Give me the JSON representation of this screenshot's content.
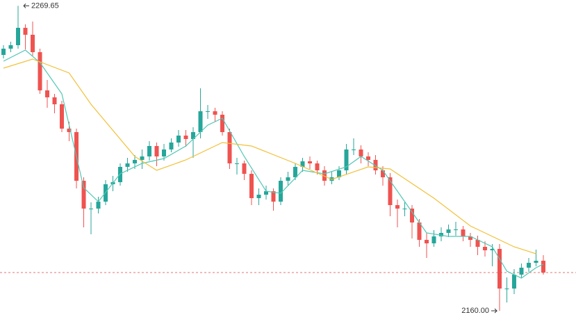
{
  "chart_data": {
    "type": "candlestick",
    "open": [
      2252,
      2254.25,
      2255.5,
      2261.75,
      2259.25,
      2253,
      2239.25,
      2236.75,
      2234.25,
      2225.5,
      2224.25,
      2206.75,
      2196.75,
      2196.75,
      2199.25,
      2205.5,
      2206.25,
      2211.75,
      2213,
      2214.25,
      2215.5,
      2219.25,
      2215.5,
      2218,
      2220.5,
      2223,
      2221.75,
      2224.25,
      2231.75,
      2231.75,
      2230.5,
      2224.25,
      2213,
      2213,
      2209.25,
      2200.5,
      2201.75,
      2203,
      2199.25,
      2206.75,
      2208,
      2211.75,
      2213.75,
      2213,
      2210.5,
      2206.75,
      2208,
      2210.5,
      2218,
      2218,
      2215.5,
      2214.25,
      2210.5,
      2208,
      2198,
      2196.75,
      2196.75,
      2191.75,
      2185.5,
      2184.25,
      2186.75,
      2188,
      2189.25,
      2189.25,
      2186.75,
      2185.5,
      2183,
      2181.75,
      2182.25,
      2168,
      2168,
      2173,
      2175.5,
      2177.25,
      2178
    ],
    "high": [
      2255.5,
      2256.75,
      2269.65,
      2263,
      2264,
      2254.25,
      2243,
      2238,
      2235.5,
      2228,
      2225.5,
      2208,
      2199,
      2201,
      2207,
      2208.5,
      2213,
      2215,
      2216,
      2218,
      2221,
      2220.5,
      2220,
      2222,
      2225,
      2225,
      2226,
      2240,
      2234,
      2233,
      2231.75,
      2225.5,
      2215,
      2214,
      2210.5,
      2204,
      2205,
      2204,
      2208,
      2210,
      2213,
      2215,
      2215.5,
      2214,
      2212,
      2210,
      2212,
      2220,
      2222,
      2219.5,
      2217,
      2216,
      2212,
      2209.5,
      2200,
      2199,
      2198,
      2193,
      2188,
      2189,
      2190,
      2191,
      2192,
      2190.5,
      2188,
      2187,
      2185,
      2184,
      2184,
      2172,
      2175,
      2177,
      2179,
      2182,
      2180
    ],
    "low": [
      2250.75,
      2253,
      2254.25,
      2254,
      2251.75,
      2238,
      2233,
      2231,
      2224.25,
      2221,
      2204,
      2190,
      2187.5,
      2195,
      2198,
      2203,
      2205,
      2210,
      2211,
      2211,
      2214,
      2212,
      2214,
      2217,
      2219,
      2219,
      2215,
      2222,
      2229,
      2228,
      2223,
      2211,
      2209,
      2207,
      2198,
      2198,
      2200,
      2196,
      2198,
      2205,
      2207,
      2210,
      2211,
      2209,
      2205,
      2205.5,
      2207,
      2209,
      2216,
      2213,
      2212,
      2209,
      2205,
      2194,
      2190,
      2194,
      2186,
      2183,
      2179,
      2183,
      2185,
      2186.5,
      2187,
      2185,
      2183,
      2180,
      2179.5,
      2176,
      2160,
      2163,
      2166,
      2172,
      2174,
      2176,
      2173
    ],
    "close": [
      2254.25,
      2255.5,
      2261.75,
      2259.25,
      2253,
      2239.25,
      2236.75,
      2234.25,
      2225.5,
      2224.25,
      2206.75,
      2196.75,
      2196.75,
      2199.25,
      2205.5,
      2206.25,
      2211.75,
      2213,
      2214.25,
      2215.5,
      2219.25,
      2215.5,
      2218,
      2220.5,
      2223,
      2221.75,
      2224.25,
      2231.75,
      2231.75,
      2230.5,
      2224.25,
      2213,
      2213,
      2209.25,
      2200.5,
      2201.75,
      2203,
      2199.25,
      2206.75,
      2208,
      2211.75,
      2213.75,
      2213,
      2210.5,
      2206.75,
      2208,
      2210.5,
      2218,
      2218,
      2215.5,
      2214.25,
      2210.5,
      2208,
      2198,
      2196.75,
      2196.75,
      2191.75,
      2185.5,
      2184.25,
      2186.75,
      2188,
      2189.25,
      2189.25,
      2186.75,
      2185.5,
      2183,
      2181.75,
      2182.25,
      2168,
      2168,
      2173,
      2175.5,
      2177.25,
      2178,
      2173.75
    ],
    "up_color": "#26a69a",
    "down_color": "#ef5350",
    "lines": [
      {
        "color": "#4fc7b4",
        "x": [
          0,
          3,
          5,
          8,
          11,
          13,
          16,
          19,
          22,
          25,
          28,
          30,
          33,
          36,
          38,
          41,
          44,
          47,
          49,
          52,
          55,
          58,
          61,
          64,
          67,
          69,
          71,
          73,
          74
        ],
        "values": [
          2249.75,
          2253.75,
          2249.25,
          2238,
          2204.25,
          2199.25,
          2209.25,
          2213,
          2214.75,
          2219.25,
          2226.75,
          2229.25,
          2215.5,
          2203,
          2202.25,
          2210.5,
          2209.25,
          2211.75,
          2215.5,
          2210.5,
          2199.25,
          2188,
          2186.75,
          2186.75,
          2183,
          2174.25,
          2171.75,
          2175.5,
          2176.75
        ]
      },
      {
        "color": "#f2c037",
        "x": [
          0,
          4,
          9,
          12,
          18,
          21,
          25,
          30,
          34,
          40,
          45,
          50,
          53,
          59,
          64,
          70,
          73
        ],
        "values": [
          2247.25,
          2250.5,
          2245.5,
          2234.25,
          2215.5,
          2210.5,
          2214.25,
          2220.5,
          2219.25,
          2213,
          2207.25,
          2211.75,
          2211,
          2200.5,
          2190.5,
          2183,
          2180.5
        ]
      }
    ],
    "last_price": 2173.75,
    "annotations": [
      {
        "text": "2269.65",
        "value": 2269.65,
        "index": 2
      },
      {
        "text": "2160.00",
        "value": 2160.0,
        "index": 68
      }
    ],
    "ylim": [
      2155.25,
      2271.75
    ]
  }
}
